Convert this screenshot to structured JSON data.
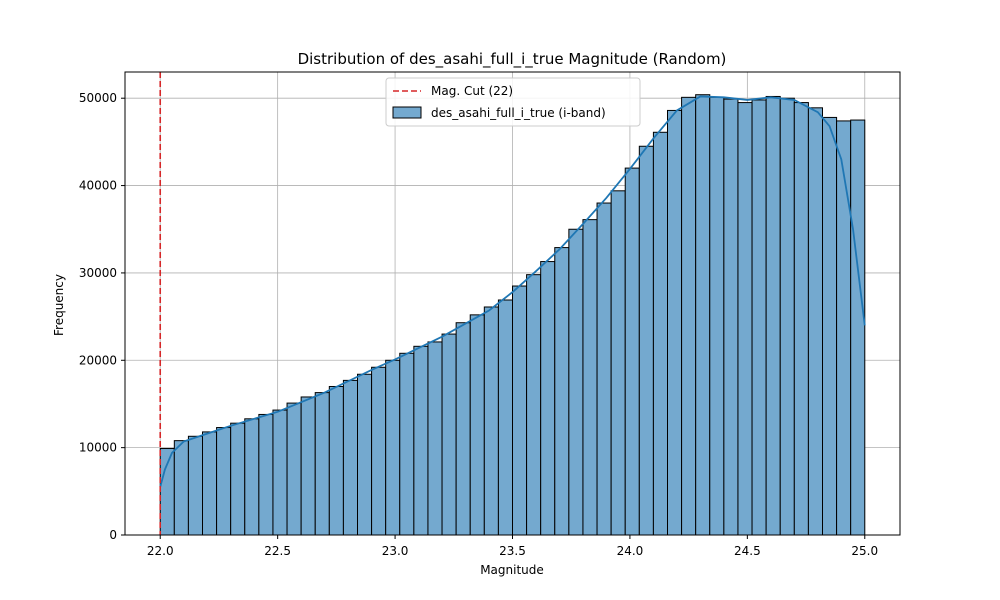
{
  "chart_data": {
    "type": "bar",
    "title": "Distribution of des_asahi_full_i_true Magnitude (Random)",
    "xlabel": "Magnitude",
    "ylabel": "Frequency",
    "xlim": [
      21.85,
      25.15
    ],
    "ylim": [
      0,
      53000
    ],
    "xticks": [
      22.0,
      22.5,
      23.0,
      23.5,
      24.0,
      24.5,
      25.0
    ],
    "xtick_labels": [
      "22.0",
      "22.5",
      "23.0",
      "23.5",
      "24.0",
      "24.5",
      "25.0"
    ],
    "yticks": [
      0,
      10000,
      20000,
      30000,
      40000,
      50000
    ],
    "ytick_labels": [
      "0",
      "10000",
      "20000",
      "30000",
      "40000",
      "50000"
    ],
    "grid": true,
    "bin_start": 22.0,
    "bin_width": 0.06,
    "values": [
      9900,
      10800,
      11300,
      11800,
      12300,
      12800,
      13300,
      13800,
      14300,
      15100,
      15800,
      16300,
      17000,
      17700,
      18400,
      19200,
      20000,
      20800,
      21600,
      22100,
      23000,
      24300,
      25200,
      26100,
      26900,
      28500,
      29800,
      31300,
      32900,
      35000,
      36100,
      38000,
      39400,
      42000,
      44500,
      46100,
      48600,
      50100,
      50400,
      50100,
      49900,
      49500,
      49800,
      50200,
      50000,
      49500,
      48900,
      47800,
      47400,
      47500
    ],
    "kde": [
      [
        22.0,
        5500
      ],
      [
        22.02,
        7500
      ],
      [
        22.05,
        9400
      ],
      [
        22.1,
        10700
      ],
      [
        22.2,
        11600
      ],
      [
        22.3,
        12500
      ],
      [
        22.4,
        13300
      ],
      [
        22.5,
        14100
      ],
      [
        22.6,
        15200
      ],
      [
        22.7,
        16300
      ],
      [
        22.8,
        17600
      ],
      [
        22.9,
        18900
      ],
      [
        23.0,
        20100
      ],
      [
        23.1,
        21400
      ],
      [
        23.2,
        22700
      ],
      [
        23.3,
        24200
      ],
      [
        23.4,
        25700
      ],
      [
        23.5,
        27800
      ],
      [
        23.6,
        30200
      ],
      [
        23.7,
        32700
      ],
      [
        23.8,
        35600
      ],
      [
        23.9,
        38600
      ],
      [
        24.0,
        41900
      ],
      [
        24.1,
        45400
      ],
      [
        24.2,
        48600
      ],
      [
        24.3,
        50200
      ],
      [
        24.4,
        50100
      ],
      [
        24.5,
        49800
      ],
      [
        24.6,
        50100
      ],
      [
        24.7,
        49800
      ],
      [
        24.8,
        48400
      ],
      [
        24.85,
        46800
      ],
      [
        24.9,
        43000
      ],
      [
        24.95,
        35000
      ],
      [
        25.0,
        24000
      ]
    ],
    "cut_line": {
      "x": 22,
      "color": "#d62728"
    },
    "bar_color": "#74a9cf",
    "kde_color": "#1f77b4",
    "legend": {
      "placement": "top-center",
      "entries": [
        {
          "label": "Mag. Cut (22)",
          "kind": "dashed-line"
        },
        {
          "label": "des_asahi_full_i_true (i-band)",
          "kind": "patch"
        }
      ]
    }
  }
}
